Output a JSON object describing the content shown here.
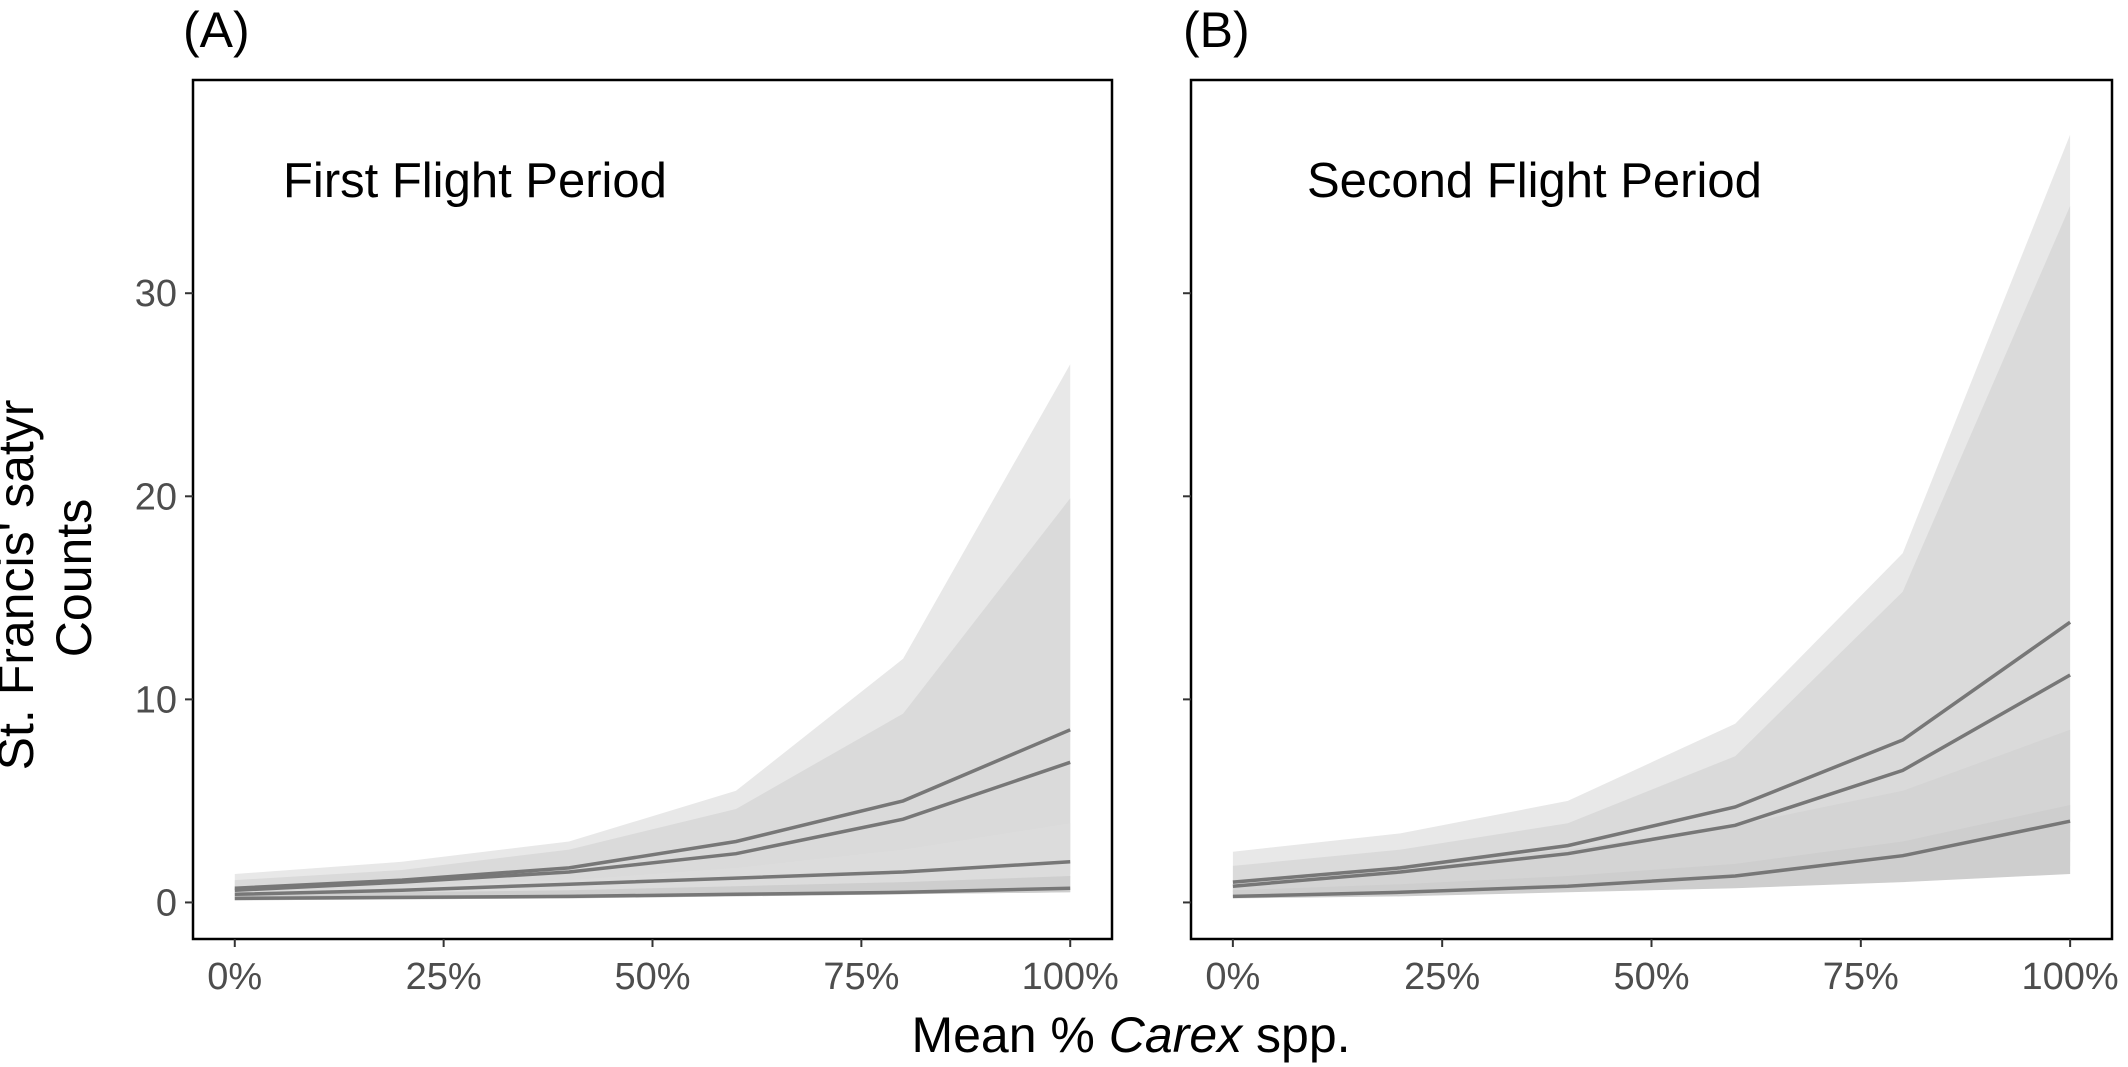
{
  "figure": {
    "ylabel_line1": "St. Francis' satyr",
    "ylabel_line2": "Counts",
    "xlabel_prefix": "Mean % ",
    "xlabel_italic": "Carex",
    "xlabel_suffix": " spp."
  },
  "chart_data": [
    {
      "type": "line",
      "panel_label": "(A)",
      "title": "First Flight Period",
      "x": [
        0,
        20,
        40,
        60,
        80,
        100
      ],
      "xticks": [
        0,
        25,
        50,
        75,
        100
      ],
      "xtick_labels": [
        "0%",
        "25%",
        "50%",
        "75%",
        "100%"
      ],
      "xlim": [
        -5,
        105
      ],
      "ylim": [
        -1.8,
        40.5
      ],
      "yticks": [
        0,
        10,
        20,
        30
      ],
      "ytick_labels": [
        "0",
        "10",
        "20",
        "30"
      ],
      "ribbons": [
        {
          "lower": [
            0.5,
            0.6,
            0.7,
            0.9,
            1.0,
            1.2
          ],
          "upper": [
            1.4,
            2.0,
            3.0,
            5.5,
            12.0,
            26.5
          ],
          "fill": "#e8e8e8"
        },
        {
          "lower": [
            0.5,
            0.6,
            0.7,
            0.9,
            1.1,
            1.4
          ],
          "upper": [
            1.1,
            1.6,
            2.6,
            4.6,
            9.3,
            19.9
          ],
          "fill": "#dadada"
        },
        {
          "lower": [
            0.1,
            0.15,
            0.2,
            0.3,
            0.4,
            0.5
          ],
          "upper": [
            0.5,
            0.8,
            1.1,
            1.7,
            2.6,
            3.9
          ],
          "fill": "#dcdcdc"
        },
        {
          "lower": [
            0.1,
            0.15,
            0.2,
            0.3,
            0.4,
            0.5
          ],
          "upper": [
            0.4,
            0.5,
            0.6,
            0.8,
            1.0,
            1.3
          ],
          "fill": "#cecece"
        }
      ],
      "series": [
        {
          "values": [
            0.7,
            1.1,
            1.7,
            3.0,
            5.0,
            8.5
          ]
        },
        {
          "values": [
            0.6,
            1.0,
            1.5,
            2.4,
            4.1,
            6.9
          ]
        },
        {
          "values": [
            0.4,
            0.6,
            0.9,
            1.2,
            1.5,
            2.0
          ]
        },
        {
          "values": [
            0.2,
            0.25,
            0.3,
            0.4,
            0.5,
            0.7
          ]
        }
      ],
      "line_color": "#777777"
    },
    {
      "type": "line",
      "panel_label": "(B)",
      "title": "Second Flight Period",
      "x": [
        0,
        20,
        40,
        60,
        80,
        100
      ],
      "xticks": [
        0,
        25,
        50,
        75,
        100
      ],
      "xtick_labels": [
        "0%",
        "25%",
        "50%",
        "75%",
        "100%"
      ],
      "xlim": [
        -5,
        105
      ],
      "ylim": [
        -1.8,
        40.5
      ],
      "yticks": [
        0,
        10,
        20,
        30
      ],
      "ytick_labels": [
        "",
        "",
        "",
        ""
      ],
      "ribbons": [
        {
          "lower": [
            0.5,
            0.8,
            1.0,
            1.3,
            1.5,
            1.4
          ],
          "upper": [
            2.5,
            3.4,
            5.0,
            8.8,
            17.2,
            37.8
          ],
          "fill": "#e8e8e8"
        },
        {
          "lower": [
            0.5,
            0.9,
            1.1,
            1.4,
            1.6,
            1.8
          ],
          "upper": [
            1.8,
            2.6,
            3.9,
            7.2,
            15.3,
            34.3
          ],
          "fill": "#dadada"
        },
        {
          "lower": [
            0.4,
            0.7,
            1.0,
            1.5,
            2.2,
            3.0
          ],
          "upper": [
            1.1,
            1.8,
            2.6,
            3.8,
            5.5,
            8.5
          ],
          "fill": "#d4d4d4"
        },
        {
          "lower": [
            0.2,
            0.3,
            0.5,
            0.7,
            1.0,
            1.4
          ],
          "upper": [
            0.6,
            0.9,
            1.3,
            1.9,
            3.0,
            4.8
          ],
          "fill": "#cecece"
        }
      ],
      "series": [
        {
          "values": [
            1.0,
            1.7,
            2.8,
            4.7,
            8.0,
            13.8
          ]
        },
        {
          "values": [
            0.8,
            1.5,
            2.4,
            3.8,
            6.5,
            11.2
          ]
        },
        {
          "values": [
            0.3,
            0.5,
            0.8,
            1.3,
            2.3,
            4.0
          ]
        }
      ],
      "line_color": "#777777"
    }
  ]
}
